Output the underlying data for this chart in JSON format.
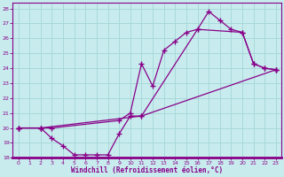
{
  "xlabel": "Windchill (Refroidissement éolien,°C)",
  "bg_color": "#c8ecee",
  "line_color": "#880088",
  "grid_color": "#a8d8da",
  "xlim": [
    -0.5,
    23.5
  ],
  "ylim": [
    18,
    28.4
  ],
  "xticks": [
    0,
    1,
    2,
    3,
    4,
    5,
    6,
    7,
    8,
    9,
    10,
    11,
    12,
    13,
    14,
    15,
    16,
    17,
    18,
    19,
    20,
    21,
    22,
    23
  ],
  "yticks": [
    18,
    19,
    20,
    21,
    22,
    23,
    24,
    25,
    26,
    27,
    28
  ],
  "line1_x": [
    0,
    2,
    3,
    9,
    10,
    11,
    12,
    13,
    14,
    15,
    16,
    17,
    18,
    19,
    20,
    21,
    22,
    23
  ],
  "line1_y": [
    20.0,
    20.0,
    20.0,
    20.5,
    21.0,
    24.3,
    22.8,
    25.2,
    25.8,
    26.4,
    26.6,
    27.8,
    27.2,
    26.6,
    26.4,
    24.3,
    24.0,
    23.9
  ],
  "line2_x": [
    0,
    2,
    3,
    4,
    5,
    6,
    7,
    8,
    9,
    10,
    11,
    23
  ],
  "line2_y": [
    20.0,
    20.0,
    19.3,
    18.8,
    18.2,
    18.2,
    18.2,
    18.2,
    19.6,
    20.8,
    20.8,
    23.9
  ],
  "line3_x": [
    0,
    2,
    11,
    16,
    20,
    21,
    22,
    23
  ],
  "line3_y": [
    20.0,
    20.0,
    20.8,
    26.6,
    26.4,
    24.3,
    24.0,
    23.9
  ]
}
